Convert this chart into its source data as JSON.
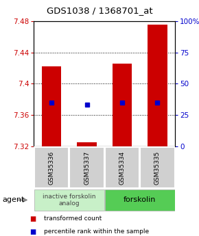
{
  "title": "GDS1038 / 1368701_at",
  "samples": [
    "GSM35336",
    "GSM35337",
    "GSM35334",
    "GSM35335"
  ],
  "bar_values": [
    7.422,
    7.325,
    7.426,
    7.476
  ],
  "bar_base": 7.32,
  "blue_dot_values": [
    7.376,
    7.373,
    7.376,
    7.376
  ],
  "ylim": [
    7.32,
    7.48
  ],
  "yticks_left": [
    7.32,
    7.36,
    7.4,
    7.44,
    7.48
  ],
  "yticks_right_vals": [
    0,
    25,
    50,
    75,
    100
  ],
  "yticks_right_labels": [
    "0",
    "25",
    "50",
    "75",
    "100%"
  ],
  "bar_color": "#cc0000",
  "dot_color": "#0000cc",
  "group1_label": "inactive forskolin\nanalog",
  "group2_label": "forskolin",
  "group1_color": "#c8f0c8",
  "group2_color": "#55cc55",
  "sample_box_color": "#d0d0d0",
  "agent_label": "agent",
  "legend1": "transformed count",
  "legend2": "percentile rank within the sample",
  "bar_width": 0.55
}
